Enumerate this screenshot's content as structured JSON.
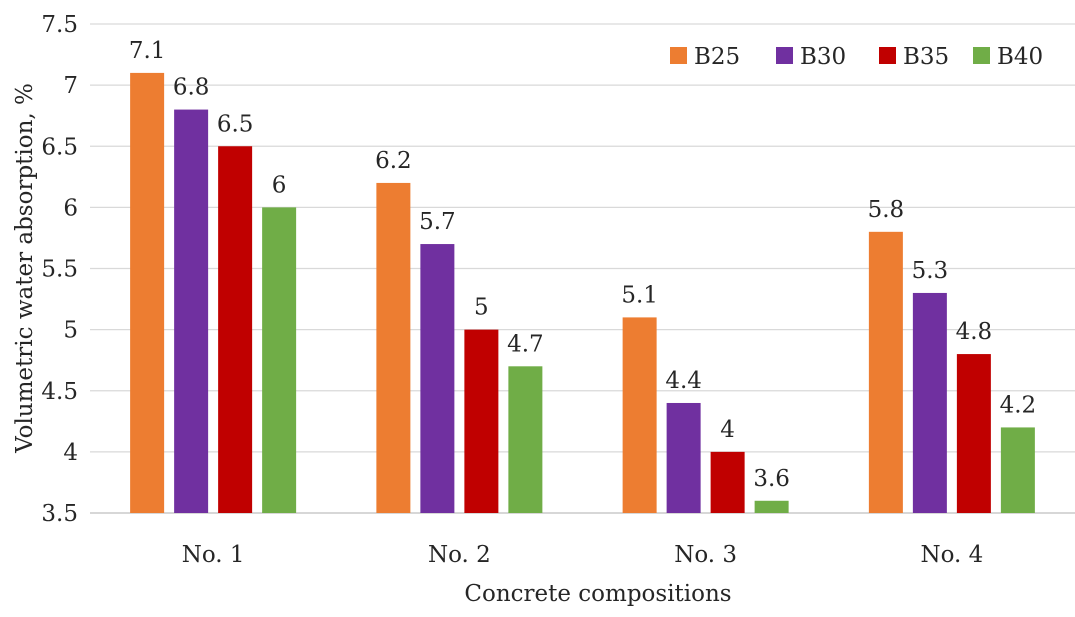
{
  "chart_data": {
    "type": "bar",
    "title": "",
    "xlabel": "Concrete compositions",
    "ylabel": "Volumetric water absorption, %",
    "ylim": [
      3.5,
      7.5
    ],
    "yticks": [
      "3.5",
      "4",
      "4.5",
      "5",
      "5.5",
      "6",
      "6.5",
      "7",
      "7.5"
    ],
    "categories": [
      "No. 1",
      "No. 2",
      "No. 3",
      "No. 4"
    ],
    "grid": true,
    "legend_position": "top-right",
    "series": [
      {
        "name": "B25",
        "color": "#ed7d31",
        "values": [
          7.1,
          6.2,
          5.1,
          5.8
        ],
        "labels": [
          "7.1",
          "6.2",
          "5.1",
          "5.8"
        ]
      },
      {
        "name": "B30",
        "color": "#7030a0",
        "values": [
          6.8,
          5.7,
          4.4,
          5.3
        ],
        "labels": [
          "6.8",
          "5.7",
          "4.4",
          "5.3"
        ]
      },
      {
        "name": "B35",
        "color": "#c00000",
        "values": [
          6.5,
          5.0,
          4.0,
          4.8
        ],
        "labels": [
          "6.5",
          "5",
          "4",
          "4.8"
        ]
      },
      {
        "name": "B40",
        "color": "#70ad47",
        "values": [
          6.0,
          4.7,
          3.6,
          4.2
        ],
        "labels": [
          "6",
          "4.7",
          "3.6",
          "4.2"
        ]
      }
    ]
  }
}
